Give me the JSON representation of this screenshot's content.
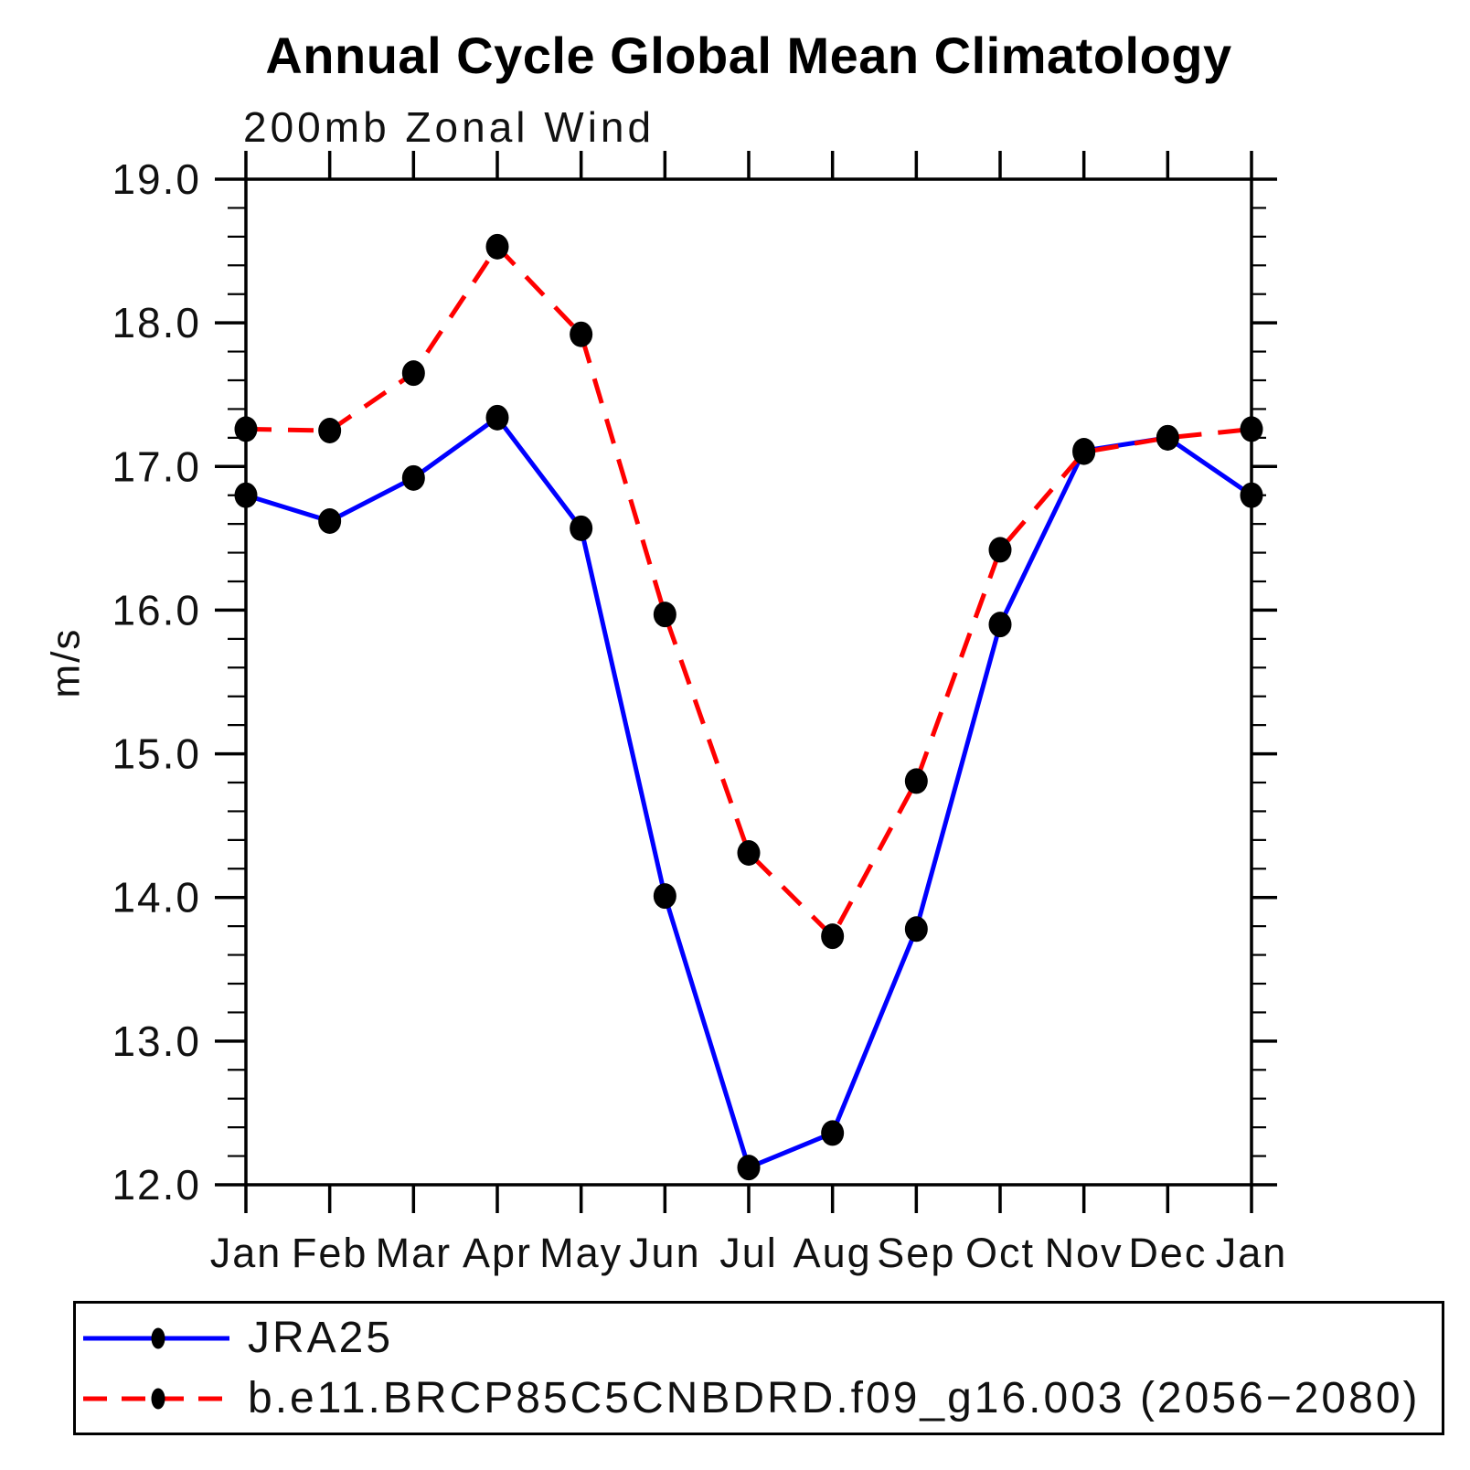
{
  "chart_data": {
    "type": "line",
    "title": "Annual Cycle Global Mean Climatology",
    "subtitle": "200mb Zonal Wind",
    "ylabel": "m/s",
    "xlabel": "",
    "categories": [
      "Jan",
      "Feb",
      "Mar",
      "Apr",
      "May",
      "Jun",
      "Jul",
      "Aug",
      "Sep",
      "Oct",
      "Nov",
      "Dec",
      "Jan"
    ],
    "ylim": [
      12.0,
      19.0
    ],
    "yticks_major": [
      12.0,
      13.0,
      14.0,
      15.0,
      16.0,
      17.0,
      18.0,
      19.0
    ],
    "ytick_labels": [
      "12.0",
      "13.0",
      "14.0",
      "15.0",
      "16.0",
      "17.0",
      "18.0",
      "19.0"
    ],
    "minor_tick_interval": 0.2,
    "grid": false,
    "legend_position": "framed box below plot, left aligned",
    "frame_color": "#000000",
    "marker_shape": "filled-circle",
    "marker_color": "#000000",
    "series": [
      {
        "name": "JRA25",
        "color": "#0000ff",
        "line_style": "solid",
        "values": [
          16.8,
          16.62,
          16.92,
          17.34,
          16.57,
          14.01,
          12.12,
          12.36,
          13.78,
          15.9,
          17.11,
          17.2,
          16.8
        ]
      },
      {
        "name": "b.e11.BRCP85C5CNBDRD.f09_g16.003 (2056−2080)",
        "color": "#ff0000",
        "line_style": "dashed",
        "values": [
          17.26,
          17.25,
          17.65,
          18.53,
          17.92,
          15.97,
          14.31,
          13.73,
          14.81,
          16.42,
          17.1,
          17.2,
          17.26
        ]
      }
    ]
  }
}
